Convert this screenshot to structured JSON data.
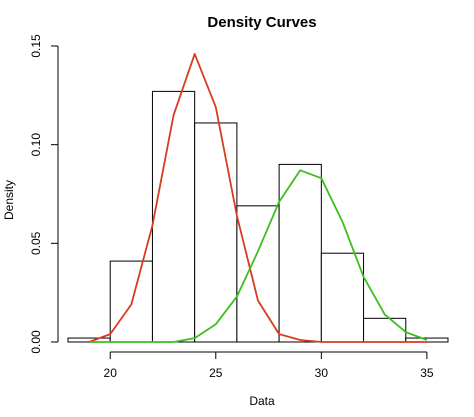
{
  "chart_data": {
    "type": "histogram",
    "title": "Density Curves",
    "xlabel": "Data",
    "ylabel": "Density",
    "xlim": [
      18,
      36
    ],
    "ylim": [
      0,
      0.15
    ],
    "x_ticks": [
      20,
      25,
      30,
      35
    ],
    "y_ticks": [
      0.0,
      0.05,
      0.1,
      0.15
    ],
    "x_tick_labels": [
      "20",
      "25",
      "30",
      "35"
    ],
    "y_tick_labels": [
      "0.00",
      "0.05",
      "0.10",
      "0.15"
    ],
    "grid": false,
    "legend": "none",
    "histogram": {
      "breaks": [
        18,
        20,
        22,
        24,
        26,
        28,
        30,
        32,
        34,
        36
      ],
      "densities": [
        0.002,
        0.041,
        0.127,
        0.111,
        0.069,
        0.09,
        0.045,
        0.012,
        0.002
      ],
      "fill": "#ffffff",
      "stroke": "#000000"
    },
    "series": [
      {
        "color": "#d93a20",
        "x": [
          19,
          20,
          21,
          22,
          23,
          24,
          25,
          26,
          27,
          28,
          29,
          30,
          31,
          32,
          33,
          34,
          35
        ],
        "values": [
          0.0,
          0.004,
          0.019,
          0.059,
          0.115,
          0.146,
          0.119,
          0.064,
          0.021,
          0.004,
          0.001,
          0.0,
          0.0,
          0.0,
          0.0,
          0.0,
          0.0
        ]
      },
      {
        "color": "#3bbf1e",
        "x": [
          19,
          20,
          21,
          22,
          23,
          24,
          25,
          26,
          27,
          28,
          29,
          30,
          31,
          32,
          33,
          34,
          35
        ],
        "values": [
          0.0,
          0.0,
          0.0,
          0.0,
          0.0,
          0.002,
          0.009,
          0.023,
          0.046,
          0.071,
          0.087,
          0.083,
          0.061,
          0.033,
          0.014,
          0.005,
          0.001
        ]
      }
    ]
  }
}
